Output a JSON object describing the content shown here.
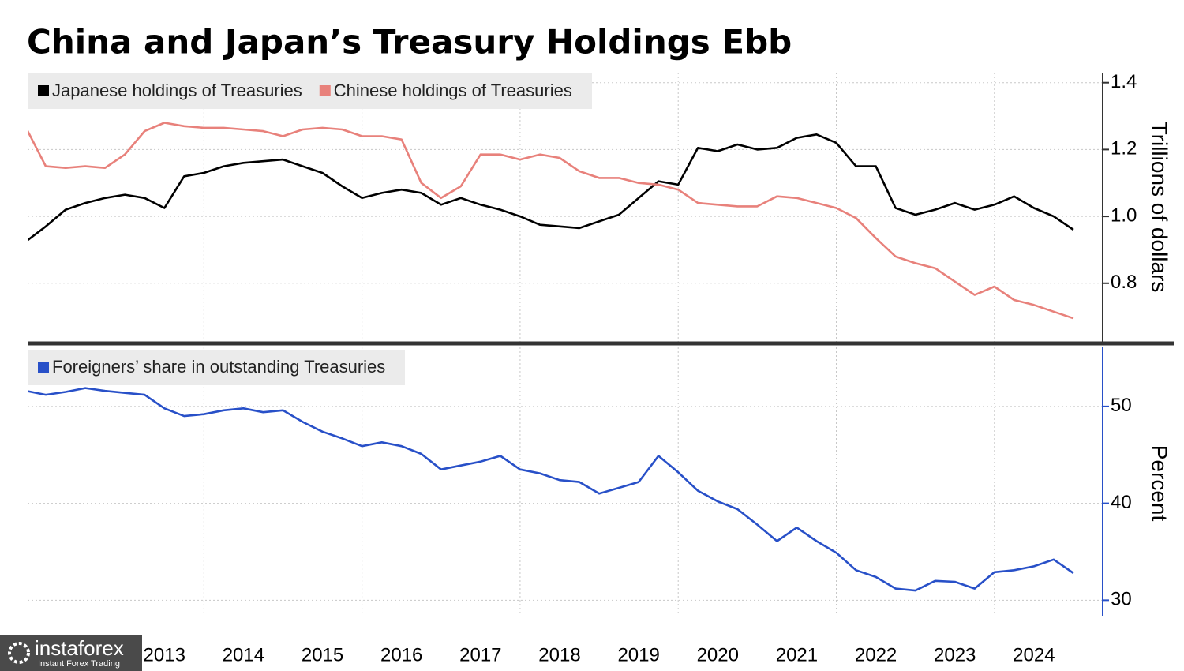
{
  "chart_data": [
    {
      "type": "line",
      "title": "China and Japan’s Treasury Holdings Ebb",
      "ylabel": "Trillions of dollars",
      "x": [
        2011.75,
        2012,
        2012.25,
        2012.5,
        2012.75,
        2013,
        2013.25,
        2013.5,
        2013.75,
        2014,
        2014.25,
        2014.5,
        2014.75,
        2015,
        2015.25,
        2015.5,
        2015.75,
        2016,
        2016.25,
        2016.5,
        2016.75,
        2017,
        2017.25,
        2017.5,
        2017.75,
        2018,
        2018.25,
        2018.5,
        2018.75,
        2019,
        2019.25,
        2019.5,
        2019.75,
        2020,
        2020.25,
        2020.5,
        2020.75,
        2021,
        2021.25,
        2021.5,
        2021.75,
        2022,
        2022.25,
        2022.5,
        2022.75,
        2023,
        2023.25,
        2023.5,
        2023.75,
        2024,
        2024.25,
        2024.5,
        2024.75,
        2025
      ],
      "xlim": [
        2011.77,
        2025.37
      ],
      "ylim": [
        0.62,
        1.43
      ],
      "yticks": [
        {
          "value": 0.8,
          "label": "0.8"
        },
        {
          "value": 1.0,
          "label": "1.0"
        },
        {
          "value": 1.2,
          "label": "1.2"
        },
        {
          "value": 1.4,
          "label": "1.4"
        }
      ],
      "grid": true,
      "series": [
        {
          "name": "Japanese holdings of Treasuries",
          "color": "#000000",
          "values": [
            0.925,
            0.97,
            1.02,
            1.04,
            1.055,
            1.065,
            1.055,
            1.025,
            1.12,
            1.13,
            1.15,
            1.16,
            1.165,
            1.17,
            1.15,
            1.13,
            1.09,
            1.055,
            1.07,
            1.08,
            1.07,
            1.035,
            1.055,
            1.035,
            1.02,
            1.0,
            0.975,
            0.97,
            0.965,
            0.985,
            1.005,
            1.055,
            1.105,
            1.095,
            1.205,
            1.195,
            1.215,
            1.2,
            1.205,
            1.235,
            1.245,
            1.22,
            1.15,
            1.15,
            1.025,
            1.005,
            1.02,
            1.04,
            1.02,
            1.035,
            1.06,
            1.025,
            1.0,
            0.96
          ]
        },
        {
          "name": "Chinese holdings of Treasuries",
          "color": "#e8817b",
          "values": [
            1.265,
            1.15,
            1.145,
            1.15,
            1.145,
            1.185,
            1.255,
            1.28,
            1.27,
            1.265,
            1.265,
            1.26,
            1.255,
            1.24,
            1.26,
            1.265,
            1.26,
            1.24,
            1.24,
            1.23,
            1.1,
            1.055,
            1.09,
            1.185,
            1.185,
            1.17,
            1.185,
            1.175,
            1.135,
            1.115,
            1.115,
            1.1,
            1.095,
            1.08,
            1.04,
            1.035,
            1.03,
            1.03,
            1.06,
            1.055,
            1.04,
            1.025,
            0.995,
            0.935,
            0.88,
            0.86,
            0.845,
            0.805,
            0.765,
            0.79,
            0.75,
            0.735,
            0.715,
            0.695
          ]
        }
      ]
    },
    {
      "type": "line",
      "ylabel": "Percent",
      "x": [
        2011.75,
        2012,
        2012.25,
        2012.5,
        2012.75,
        2013,
        2013.25,
        2013.5,
        2013.75,
        2014,
        2014.25,
        2014.5,
        2014.75,
        2015,
        2015.25,
        2015.5,
        2015.75,
        2016,
        2016.25,
        2016.5,
        2016.75,
        2017,
        2017.25,
        2017.5,
        2017.75,
        2018,
        2018.25,
        2018.5,
        2018.75,
        2019,
        2019.25,
        2019.5,
        2019.75,
        2020,
        2020.25,
        2020.5,
        2020.75,
        2021,
        2021.25,
        2021.5,
        2021.75,
        2022,
        2022.25,
        2022.5,
        2022.75,
        2023,
        2023.25,
        2023.5,
        2023.75,
        2024,
        2024.25,
        2024.5,
        2024.75,
        2025
      ],
      "xlim": [
        2011.77,
        2025.37
      ],
      "xticks": [
        2013,
        2014,
        2015,
        2016,
        2017,
        2018,
        2019,
        2020,
        2021,
        2022,
        2023,
        2024
      ],
      "ylim": [
        28.4,
        56.1
      ],
      "yticks": [
        30,
        40,
        50
      ],
      "grid": true,
      "series": [
        {
          "name": "Foreigners’ share in outstanding Treasuries",
          "color": "#2850c8",
          "values": [
            51.6,
            51.2,
            51.5,
            51.9,
            51.6,
            51.4,
            51.2,
            49.8,
            49.0,
            49.2,
            49.6,
            49.8,
            49.4,
            49.6,
            48.4,
            47.4,
            46.7,
            45.9,
            46.3,
            45.9,
            45.1,
            43.5,
            43.9,
            44.3,
            44.9,
            43.5,
            43.1,
            42.4,
            42.2,
            41.0,
            41.6,
            42.2,
            44.9,
            43.2,
            41.3,
            40.2,
            39.4,
            37.8,
            36.1,
            37.5,
            36.1,
            34.9,
            33.1,
            32.4,
            31.2,
            31.0,
            32.0,
            31.9,
            31.2,
            32.9,
            33.1,
            33.5,
            34.2,
            32.8
          ]
        }
      ]
    }
  ],
  "watermark": {
    "brand": "instaforex",
    "tagline": "Instant Forex Trading"
  }
}
